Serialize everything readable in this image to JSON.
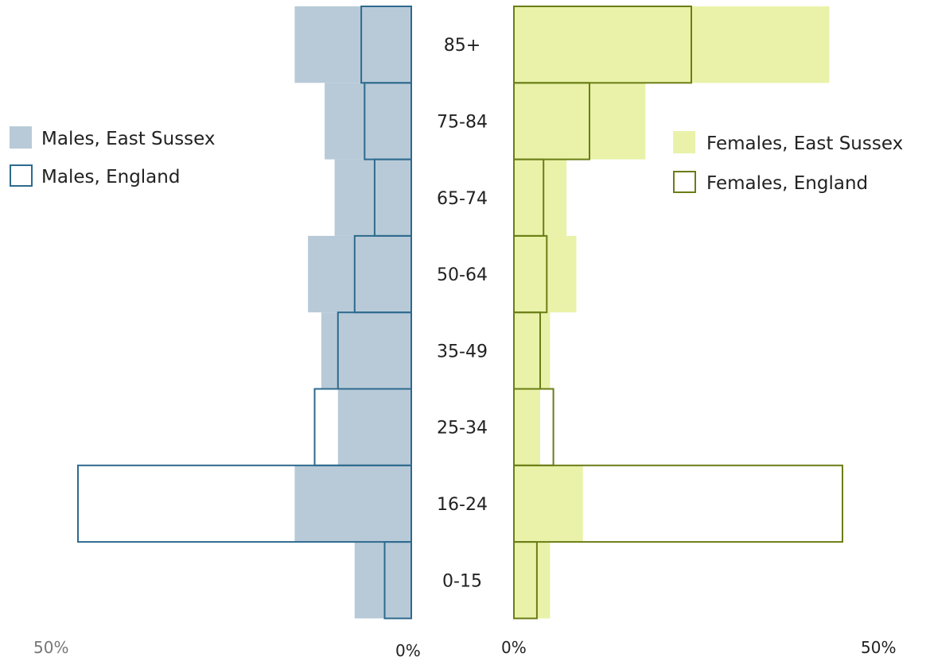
{
  "chart_data": {
    "type": "bar",
    "orientation": "horizontal-population-pyramid",
    "categories": [
      "85+",
      "75-84",
      "65-74",
      "50-64",
      "35-49",
      "25-34",
      "16-24",
      "0-15"
    ],
    "series": [
      {
        "name": "Males, East Sussex",
        "side": "left",
        "style": "filled",
        "color": "#b8cad8",
        "values": [
          17.5,
          13,
          11.5,
          15.5,
          13.5,
          11,
          17.5,
          8.5
        ]
      },
      {
        "name": "Males, England",
        "side": "left",
        "style": "outline",
        "color": "#2e6a8e",
        "values": [
          7.5,
          7,
          5.5,
          8.5,
          11,
          14.5,
          50,
          4
        ]
      },
      {
        "name": "Females, East Sussex",
        "side": "right",
        "style": "filled",
        "color": "#e9f2a8",
        "values": [
          48,
          20,
          8,
          9.5,
          5.5,
          4,
          10.5,
          5.5
        ]
      },
      {
        "name": "Females, England",
        "side": "right",
        "style": "outline",
        "color": "#6b7d16",
        "values": [
          27,
          11.5,
          4.5,
          5,
          4,
          6,
          50,
          3.5
        ]
      }
    ],
    "xlim": [
      0,
      50
    ],
    "tick_labels": {
      "left_max": "50%",
      "left_zero": "0%",
      "right_zero": "0%",
      "right_max": "50%"
    },
    "legend": {
      "males_placement": "left",
      "females_placement": "right"
    },
    "grid": false
  }
}
